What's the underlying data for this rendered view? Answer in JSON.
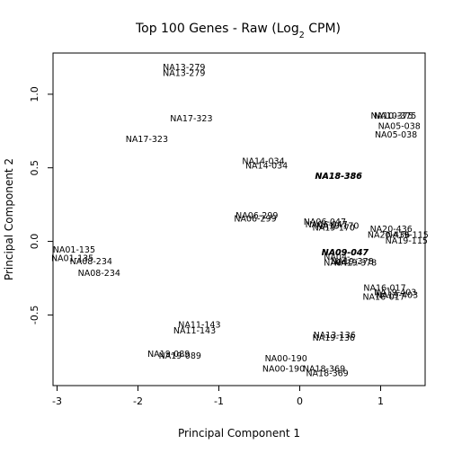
{
  "chart_data": {
    "type": "scatter",
    "title": "Top 100 Genes - Raw (Log2 CPM)",
    "title_main": "Top 100 Genes - Raw (Log",
    "title_sub": "2",
    "title_end": " CPM)",
    "xlabel": "Principal Component 1",
    "ylabel": "Principal Component 2",
    "xlim": [
      -3.05,
      1.55
    ],
    "ylim": [
      -0.98,
      1.28
    ],
    "xticks": [
      -3,
      -2,
      -1,
      0,
      1
    ],
    "yticks": [
      -0.5,
      0.0,
      0.5,
      1.0
    ],
    "xtick_labels": [
      "-3",
      "-2",
      "-1",
      "0",
      "1"
    ],
    "ytick_labels": [
      "-0.5",
      "0.0",
      "0.5",
      "1.0"
    ],
    "marker": "sample-name text labels",
    "grid": false,
    "points": [
      {
        "label": "NA13-279",
        "x": -1.43,
        "y": 1.18
      },
      {
        "label": "NA13-279",
        "x": -1.43,
        "y": 1.14
      },
      {
        "label": "NA17-323",
        "x": -1.34,
        "y": 0.83
      },
      {
        "label": "NA17-323",
        "x": -1.89,
        "y": 0.69
      },
      {
        "label": "NA10-375",
        "x": 1.14,
        "y": 0.85
      },
      {
        "label": "NA10-375",
        "x": 1.18,
        "y": 0.85
      },
      {
        "label": "NA05-038",
        "x": 1.23,
        "y": 0.78
      },
      {
        "label": "NA05-038",
        "x": 1.19,
        "y": 0.72
      },
      {
        "label": "NA14-034",
        "x": -0.45,
        "y": 0.54
      },
      {
        "label": "NA14-034",
        "x": -0.41,
        "y": 0.51
      },
      {
        "label": "NA18-386",
        "x": 0.48,
        "y": 0.44,
        "bold": true
      },
      {
        "label": "NA18-386",
        "x": 0.48,
        "y": 0.44,
        "bold": true
      },
      {
        "label": "NA06-299",
        "x": -0.53,
        "y": 0.17
      },
      {
        "label": "NA06-299",
        "x": -0.55,
        "y": 0.15
      },
      {
        "label": "NA06-047",
        "x": 0.31,
        "y": 0.13
      },
      {
        "label": "NA06-047",
        "x": 0.33,
        "y": 0.11
      },
      {
        "label": "NA19-170",
        "x": 0.47,
        "y": 0.1
      },
      {
        "label": "NA19-170",
        "x": 0.42,
        "y": 0.09
      },
      {
        "label": "NA20-436",
        "x": 1.13,
        "y": 0.08
      },
      {
        "label": "NA20-436",
        "x": 1.1,
        "y": 0.04
      },
      {
        "label": "NA19-115",
        "x": 1.33,
        "y": 0.04
      },
      {
        "label": "NA19-115",
        "x": 1.32,
        "y": 0.0
      },
      {
        "label": "NA09-047",
        "x": 0.56,
        "y": -0.08,
        "bold": true
      },
      {
        "label": "NA09-047",
        "x": 0.56,
        "y": -0.08,
        "bold": true
      },
      {
        "label": "NA04-...",
        "x": 0.51,
        "y": -0.11
      },
      {
        "label": "NA19-378",
        "x": 0.65,
        "y": -0.14
      },
      {
        "label": "NA04-...",
        "x": 0.51,
        "y": -0.15
      },
      {
        "label": "NA19-378",
        "x": 0.69,
        "y": -0.15
      },
      {
        "label": "NA01-135",
        "x": -2.79,
        "y": -0.06
      },
      {
        "label": "NA01-135",
        "x": -2.81,
        "y": -0.12
      },
      {
        "label": "NA08-234",
        "x": -2.58,
        "y": -0.14
      },
      {
        "label": "NA08-234",
        "x": -2.48,
        "y": -0.22
      },
      {
        "label": "NA16-017",
        "x": 1.05,
        "y": -0.32
      },
      {
        "label": "NA16-017",
        "x": 1.04,
        "y": -0.38
      },
      {
        "label": "NA19-403",
        "x": 1.18,
        "y": -0.35
      },
      {
        "label": "NA19-403",
        "x": 1.2,
        "y": -0.37
      },
      {
        "label": "NA11-143",
        "x": -1.24,
        "y": -0.57
      },
      {
        "label": "NA11-143",
        "x": -1.3,
        "y": -0.61
      },
      {
        "label": "NA13-136",
        "x": 0.43,
        "y": -0.64
      },
      {
        "label": "NA19-136",
        "x": 0.42,
        "y": -0.66
      },
      {
        "label": "NA19-089",
        "x": -1.62,
        "y": -0.77
      },
      {
        "label": "NA19-089",
        "x": -1.48,
        "y": -0.78
      },
      {
        "label": "NA00-190",
        "x": -0.17,
        "y": -0.8
      },
      {
        "label": "NA00-190",
        "x": -0.2,
        "y": -0.87
      },
      {
        "label": "NA18-369",
        "x": 0.3,
        "y": -0.87
      },
      {
        "label": "NA18-369",
        "x": 0.34,
        "y": -0.9
      }
    ]
  }
}
